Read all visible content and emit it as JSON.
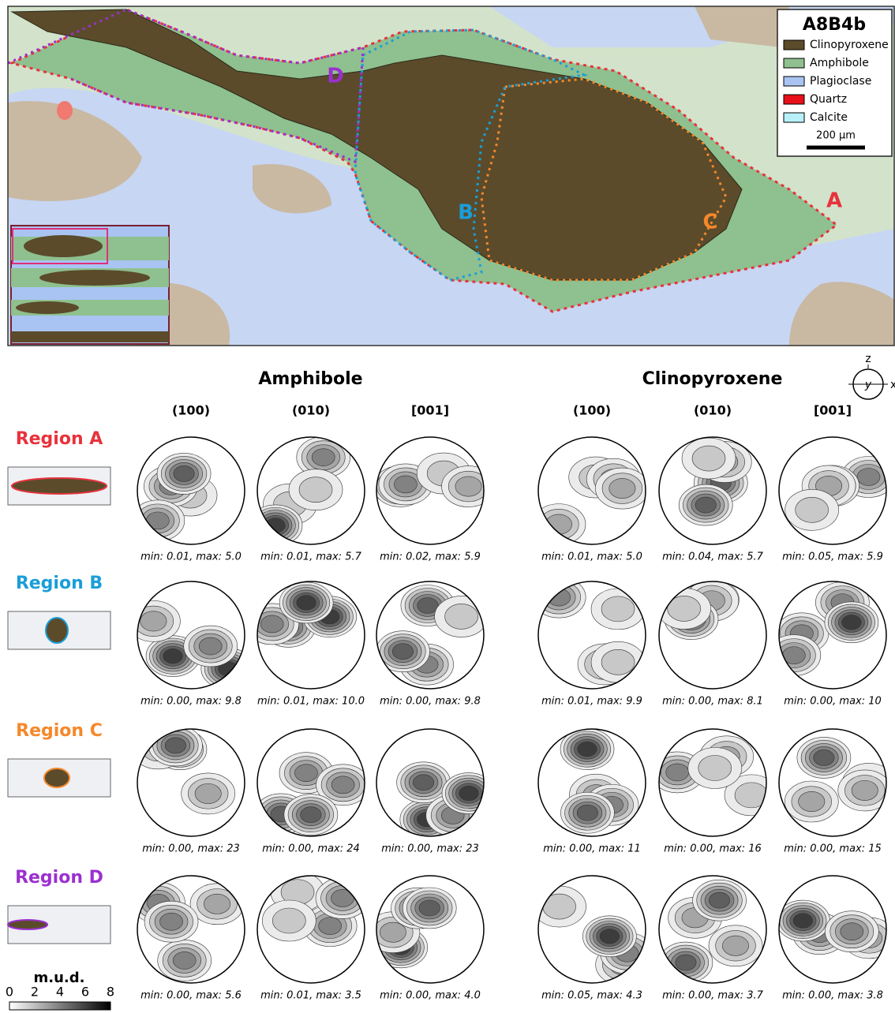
{
  "map": {
    "title": "A8B4b",
    "legend": [
      {
        "label": "Clinopyroxene",
        "color": "#5b4b2b"
      },
      {
        "label": "Amphibole",
        "color": "#8fc08f"
      },
      {
        "label": "Plagioclase",
        "color": "#a9c4f2"
      },
      {
        "label": "Quartz",
        "color": "#e8101a"
      },
      {
        "label": "Calcite",
        "color": "#b8f0f8"
      }
    ],
    "scale_bar": "200 μm"
  },
  "minerals": [
    {
      "name": "Amphibole",
      "planes": [
        "(100)",
        "(010)",
        "[001]"
      ]
    },
    {
      "name": "Clinopyroxene",
      "planes": [
        "(100)",
        "(010)",
        "[001]"
      ]
    }
  ],
  "regions": [
    {
      "label": "Region A",
      "map_label": "A",
      "color": "#e8323c",
      "stats": [
        [
          "min: 0.01, max: 5.0",
          "min: 0.01, max: 5.7",
          "min: 0.02, max: 5.9"
        ],
        [
          "min: 0.01, max: 5.0",
          "min: 0.04, max: 5.7",
          "min: 0.05, max: 5.9"
        ]
      ]
    },
    {
      "label": "Region B",
      "map_label": "B",
      "color": "#1a9ed8",
      "stats": [
        [
          "min: 0.00, max: 9.8",
          "min: 0.01, max: 10.0",
          "min: 0.00, max: 9.8"
        ],
        [
          "min: 0.01, max: 9.9",
          "min: 0.00, max: 8.1",
          "min: 0.00, max: 10"
        ]
      ]
    },
    {
      "label": "Region C",
      "map_label": "C",
      "color": "#f5882a",
      "stats": [
        [
          "min: 0.00, max: 23",
          "min: 0.00, max: 24",
          "min: 0.00, max: 23"
        ],
        [
          "min: 0.00, max: 11",
          "min: 0.00, max: 16",
          "min: 0.00, max: 15"
        ]
      ]
    },
    {
      "label": "Region D",
      "map_label": "D",
      "color": "#9b30d0",
      "stats": [
        [
          "min: 0.00, max: 5.6",
          "min: 0.01, max: 3.5",
          "min: 0.00, max: 4.0"
        ],
        [
          "min: 0.05, max: 4.3",
          "min: 0.00, max: 3.7",
          "min: 0.00, max: 3.8"
        ]
      ]
    }
  ],
  "axes": {
    "z": "z",
    "y": "y",
    "x": "x"
  },
  "colorbar": {
    "label": "m.u.d.",
    "ticks": [
      "0",
      "2",
      "4",
      "6",
      "8"
    ]
  }
}
